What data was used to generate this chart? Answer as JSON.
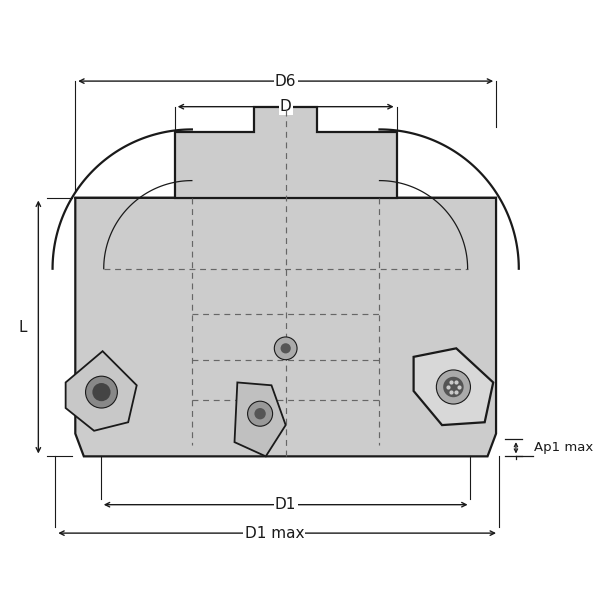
{
  "bg_color": "#ffffff",
  "body_fill": "#cccccc",
  "body_edge": "#1a1a1a",
  "dashed_color": "#666666",
  "ann_color": "#1a1a1a",
  "insert_fill": "#bbbbbb",
  "insert_fill2": "#dddddd",
  "dim_D6_label": "D6",
  "dim_D_label": "D",
  "dim_D1_label": "D1",
  "dim_D1max_label": "D1 max",
  "dim_L_label": "L",
  "dim_Ap1_label": "Ap1 max"
}
